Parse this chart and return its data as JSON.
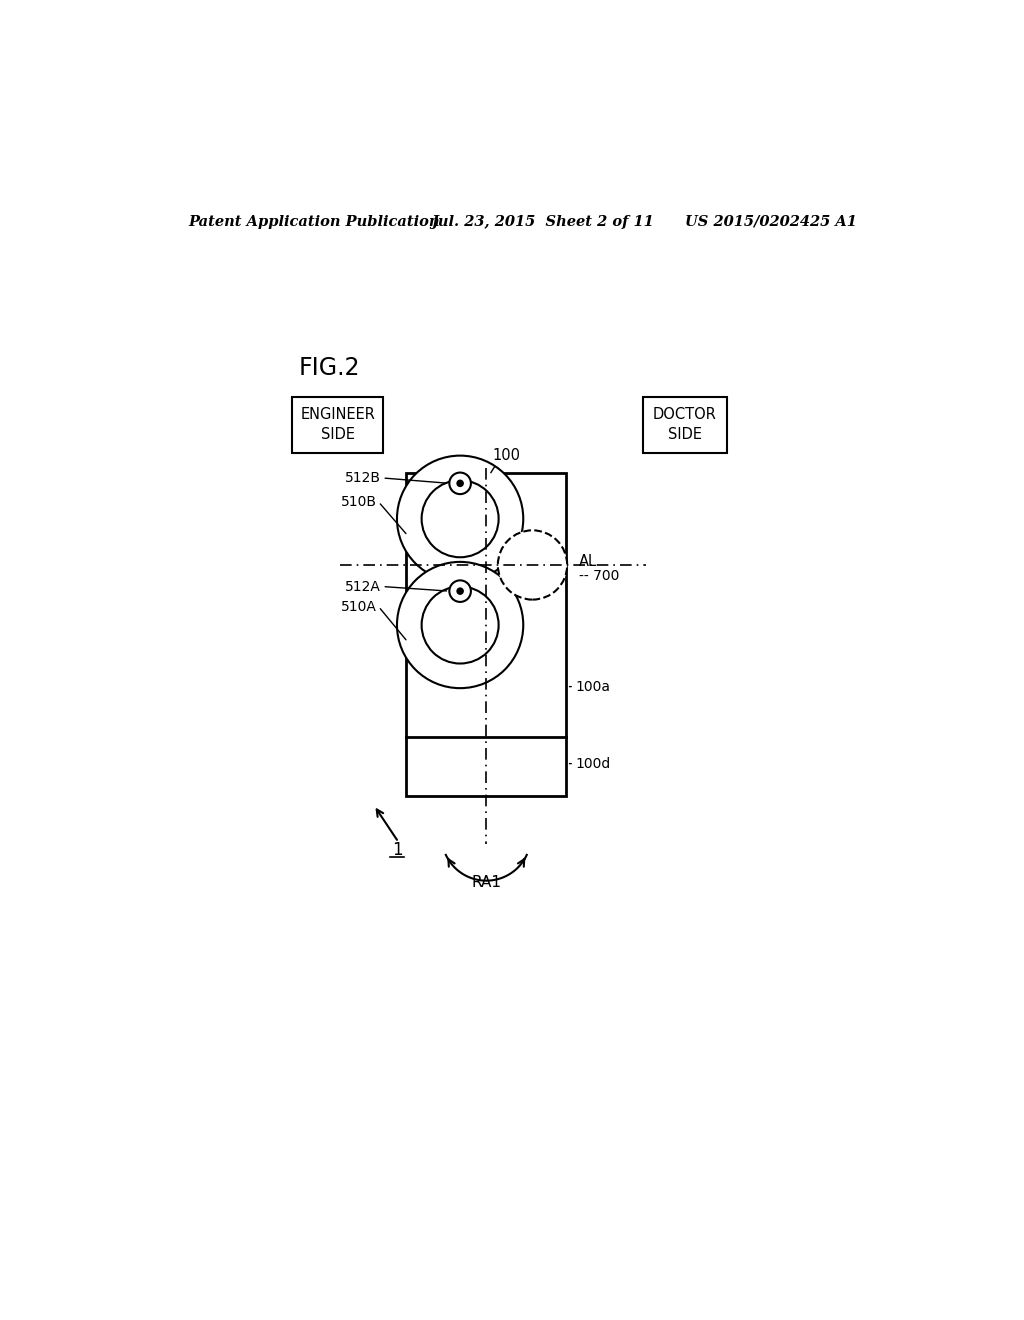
{
  "bg_color": "#ffffff",
  "header_left": "Patent Application Publication",
  "header_mid": "Jul. 23, 2015  Sheet 2 of 11",
  "header_right": "US 2015/0202425 A1",
  "fig_label": "FIG.2",
  "label_engineer": "ENGINEER\nSIDE",
  "label_doctor": "DOCTOR\nSIDE",
  "label_100": "100",
  "label_512B": "512B",
  "label_510B": "510B",
  "label_512A": "512A",
  "label_510A": "510A",
  "label_AL": "AL",
  "label_700": "-- 700",
  "label_100a": "100a",
  "label_100d": "100d",
  "label_RA1": "RA1",
  "label_1": "1"
}
